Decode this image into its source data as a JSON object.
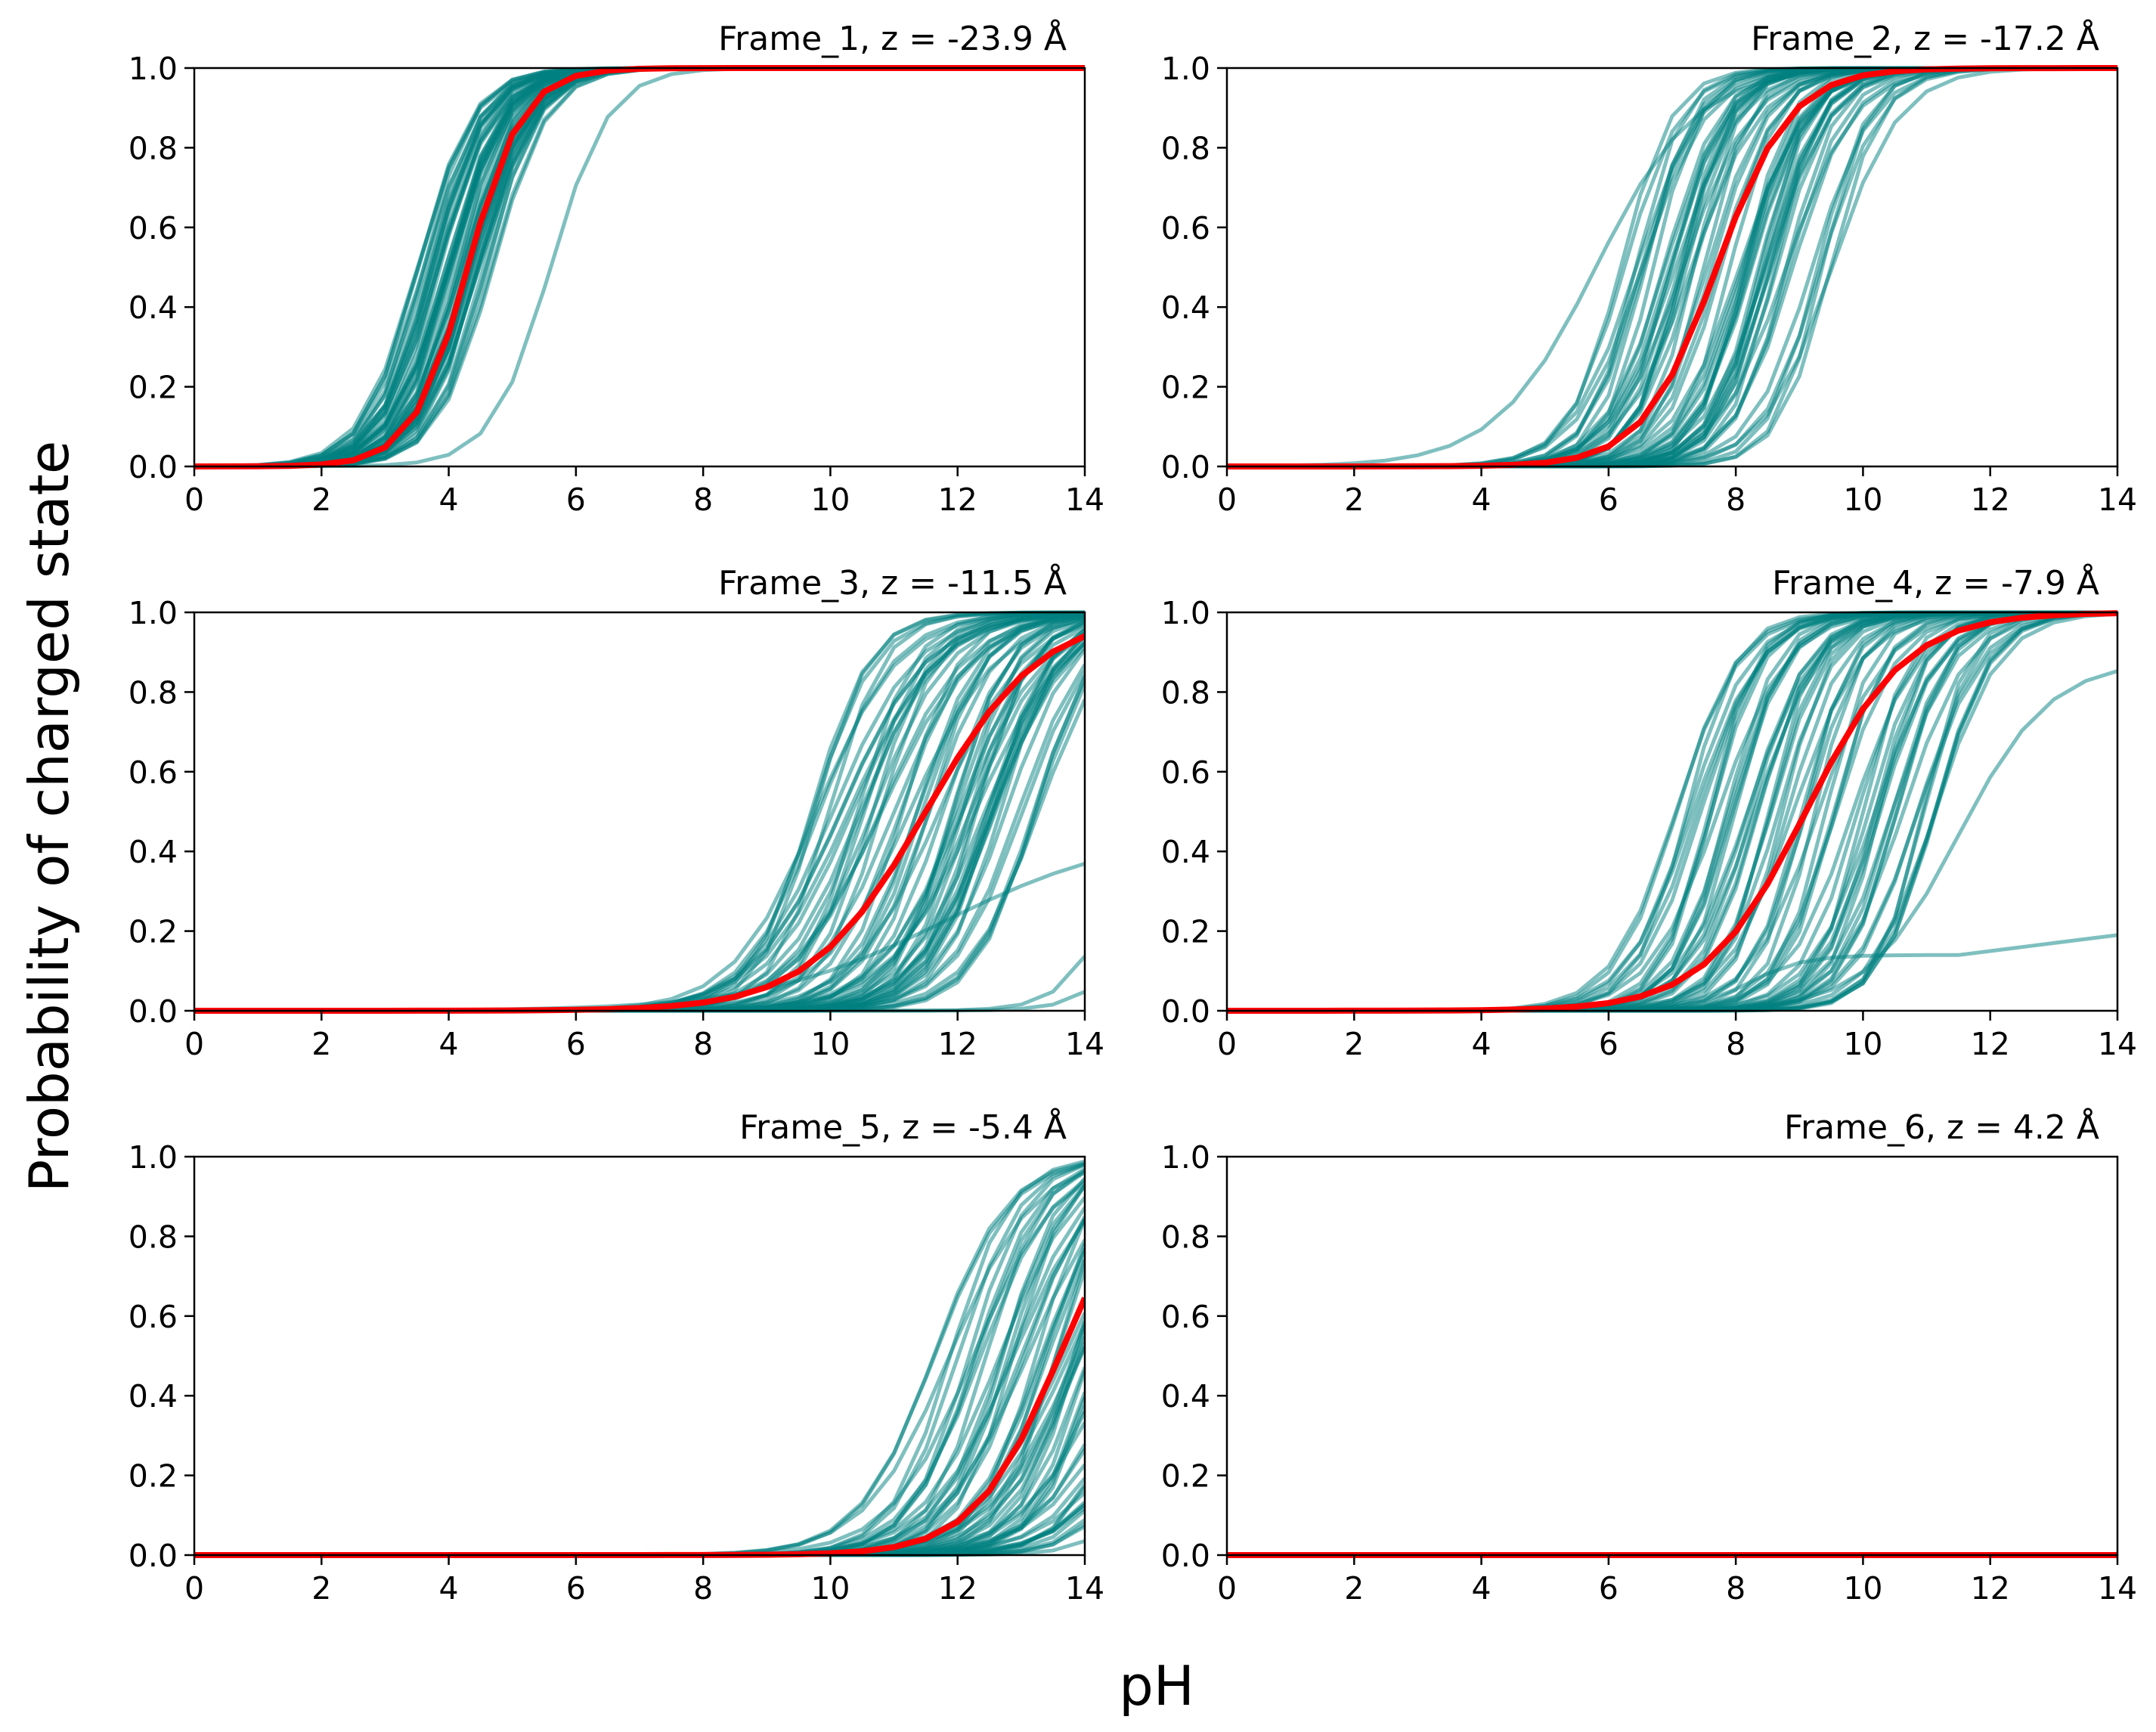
{
  "chart_data": {
    "type": "line",
    "layout": "3x2 grid",
    "xlabel": "pH",
    "ylabel": "Probability of charged state",
    "xlim": [
      0,
      14
    ],
    "ylim": [
      0,
      1
    ],
    "xticks": [
      0,
      2,
      4,
      6,
      8,
      10,
      12,
      14
    ],
    "yticks": [
      "0.0",
      "0.2",
      "0.4",
      "0.6",
      "0.8",
      "1.0"
    ],
    "colors": {
      "ensemble": "#00807f",
      "mean": "#ff0000"
    },
    "panels": [
      {
        "title": "Frame_1, z = -23.9 Å",
        "mean_series": {
          "name": "mean",
          "pKa": 4.3,
          "hill": 1.0
        },
        "ensemble": {
          "count": 60,
          "pKa_range": [
            3.5,
            4.7
          ],
          "hill_range": [
            0.9,
            1.1
          ],
          "extra_curves": [
            {
              "pKa": 5.6,
              "hill": 0.95
            }
          ]
        }
      },
      {
        "title": "Frame_2, z = -17.2 Å",
        "mean_series": {
          "name": "mean",
          "pKa": 7.7,
          "hill": 0.75
        },
        "ensemble": {
          "count": 60,
          "pKa_range": [
            6.1,
            9.6
          ],
          "hill_range": [
            0.8,
            1.2
          ],
          "extra_curves": [
            {
              "pKa": 5.8,
              "hill": 0.55
            }
          ]
        }
      },
      {
        "title": "Frame_3, z = -11.5 Å",
        "mean_series": {
          "name": "mean",
          "pKa": 11.5,
          "hill": 0.48
        },
        "ensemble": {
          "count": 60,
          "pKa_range": [
            9.6,
            13.3
          ],
          "hill_range": [
            0.6,
            1.0
          ],
          "extra_curves": [
            {
              "pKa": 14.8,
              "hill": 1.0
            },
            {
              "pKa": 15.3,
              "hill": 1.0
            },
            {
              "pKa": 11.8,
              "hill": 0.3,
              "max": 0.45
            }
          ]
        }
      },
      {
        "title": "Frame_4, z = -7.9 Å",
        "mean_series": {
          "name": "mean",
          "pKa": 9.1,
          "hill": 0.55
        },
        "ensemble": {
          "count": 60,
          "pKa_range": [
            7.0,
            11.3
          ],
          "hill_range": [
            0.8,
            1.2
          ],
          "extra_curves": [
            {
              "pKa": 8.2,
              "hill": 1.0,
              "max": 0.14,
              "tail_to": 0.19
            },
            {
              "pKa": 11.5,
              "hill": 0.6,
              "max": 0.88
            }
          ]
        }
      },
      {
        "title": "Frame_5, z = -5.4 Å",
        "mean_series": {
          "name": "mean",
          "pKa": 13.6,
          "hill": 0.65
        },
        "ensemble": {
          "count": 60,
          "pKa_range": [
            11.6,
            15.5
          ],
          "hill_range": [
            0.6,
            1.0
          ],
          "extra_curves": []
        }
      },
      {
        "title": "Frame_6, z = 4.2 Å",
        "mean_series": {
          "name": "mean",
          "pKa": null,
          "constant": 0.0
        },
        "ensemble": {
          "count": 0,
          "constant": 0.0
        }
      }
    ]
  }
}
